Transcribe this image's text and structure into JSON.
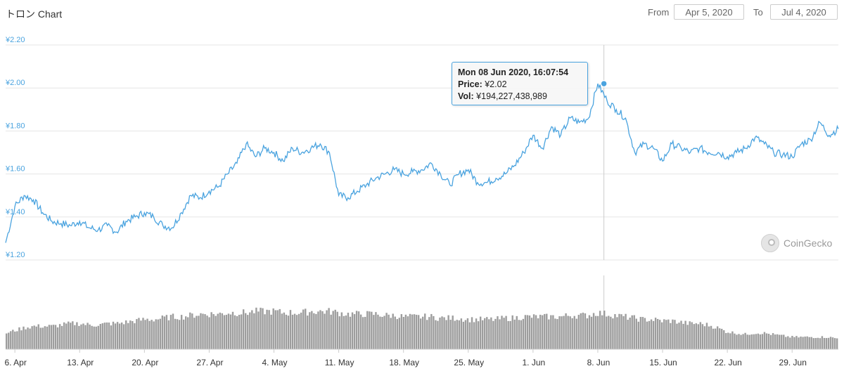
{
  "header": {
    "title": "トロン Chart",
    "from_label": "From",
    "from_value": "Apr 5, 2020",
    "to_label": "To",
    "to_value": "Jul 4, 2020"
  },
  "tooltip": {
    "date": "Mon 08 Jun 2020, 16:07:54",
    "price_label": "Price:",
    "price_value": "¥2.02",
    "vol_label": "Vol:",
    "vol_value": "¥194,227,438,989"
  },
  "watermark": {
    "text": "CoinGecko",
    "icon": "coingecko-gecko-icon"
  },
  "colors": {
    "line": "#4aa3df",
    "volume": "#8c8c8c",
    "grid": "#e6e6e6",
    "crosshair": "#cccccc"
  },
  "chart_data": {
    "type": "line",
    "title": "トロン Chart",
    "ylim": [
      1.2,
      2.2
    ],
    "yticks": [
      "¥1.20",
      "¥1.40",
      "¥1.60",
      "¥1.80",
      "¥2.00",
      "¥2.20"
    ],
    "ytick_values": [
      1.2,
      1.4,
      1.6,
      1.8,
      2.0,
      2.2
    ],
    "x_start": "2020-04-05",
    "x_end": "2020-07-04",
    "xticks": [
      "6. Apr",
      "13. Apr",
      "20. Apr",
      "27. Apr",
      "4. May",
      "11. May",
      "18. May",
      "25. May",
      "1. Jun",
      "8. Jun",
      "15. Jun",
      "22. Jun",
      "29. Jun"
    ],
    "xtick_dates": [
      "2020-04-06",
      "2020-04-13",
      "2020-04-20",
      "2020-04-27",
      "2020-05-04",
      "2020-05-11",
      "2020-05-18",
      "2020-05-25",
      "2020-06-01",
      "2020-06-08",
      "2020-06-15",
      "2020-06-22",
      "2020-06-29"
    ],
    "grid": true,
    "series": [
      {
        "x": [
          "2020-04-05",
          "2020-04-06",
          "2020-04-07",
          "2020-04-08",
          "2020-04-09",
          "2020-04-10",
          "2020-04-11",
          "2020-04-12",
          "2020-04-13",
          "2020-04-14",
          "2020-04-15",
          "2020-04-16",
          "2020-04-17",
          "2020-04-18",
          "2020-04-19",
          "2020-04-20",
          "2020-04-21",
          "2020-04-22",
          "2020-04-23",
          "2020-04-24",
          "2020-04-25",
          "2020-04-26",
          "2020-04-27",
          "2020-04-28",
          "2020-04-29",
          "2020-04-30",
          "2020-05-01",
          "2020-05-02",
          "2020-05-03",
          "2020-05-04",
          "2020-05-05",
          "2020-05-06",
          "2020-05-07",
          "2020-05-08",
          "2020-05-09",
          "2020-05-10",
          "2020-05-11",
          "2020-05-12",
          "2020-05-13",
          "2020-05-14",
          "2020-05-15",
          "2020-05-16",
          "2020-05-17",
          "2020-05-18",
          "2020-05-19",
          "2020-05-20",
          "2020-05-21",
          "2020-05-22",
          "2020-05-23",
          "2020-05-24",
          "2020-05-25",
          "2020-05-26",
          "2020-05-27",
          "2020-05-28",
          "2020-05-29",
          "2020-05-30",
          "2020-05-31",
          "2020-06-01",
          "2020-06-02",
          "2020-06-03",
          "2020-06-04",
          "2020-06-05",
          "2020-06-06",
          "2020-06-07",
          "2020-06-08",
          "2020-06-09",
          "2020-06-10",
          "2020-06-11",
          "2020-06-12",
          "2020-06-13",
          "2020-06-14",
          "2020-06-15",
          "2020-06-16",
          "2020-06-17",
          "2020-06-18",
          "2020-06-19",
          "2020-06-20",
          "2020-06-21",
          "2020-06-22",
          "2020-06-23",
          "2020-06-24",
          "2020-06-25",
          "2020-06-26",
          "2020-06-27",
          "2020-06-28",
          "2020-06-29",
          "2020-06-30",
          "2020-07-01",
          "2020-07-02",
          "2020-07-03",
          "2020-07-04"
        ],
        "values": [
          1.28,
          1.45,
          1.5,
          1.48,
          1.42,
          1.38,
          1.37,
          1.36,
          1.38,
          1.35,
          1.34,
          1.36,
          1.33,
          1.38,
          1.4,
          1.42,
          1.4,
          1.36,
          1.35,
          1.42,
          1.5,
          1.49,
          1.52,
          1.54,
          1.6,
          1.65,
          1.74,
          1.68,
          1.72,
          1.7,
          1.66,
          1.72,
          1.7,
          1.72,
          1.74,
          1.7,
          1.5,
          1.49,
          1.52,
          1.55,
          1.58,
          1.6,
          1.62,
          1.6,
          1.61,
          1.62,
          1.65,
          1.6,
          1.55,
          1.6,
          1.62,
          1.56,
          1.56,
          1.58,
          1.6,
          1.64,
          1.7,
          1.78,
          1.72,
          1.82,
          1.78,
          1.86,
          1.84,
          1.86,
          2.02,
          1.94,
          1.9,
          1.86,
          1.7,
          1.74,
          1.72,
          1.66,
          1.74,
          1.72,
          1.7,
          1.72,
          1.7,
          1.7,
          1.68,
          1.7,
          1.72,
          1.77,
          1.74,
          1.7,
          1.69,
          1.68,
          1.74,
          1.76,
          1.84,
          1.78,
          1.81
        ]
      }
    ],
    "volume_relative": [
      0.12,
      0.14,
      0.16,
      0.17,
      0.17,
      0.17,
      0.18,
      0.19,
      0.19,
      0.18,
      0.18,
      0.19,
      0.19,
      0.2,
      0.21,
      0.22,
      0.22,
      0.23,
      0.24,
      0.24,
      0.25,
      0.26,
      0.26,
      0.26,
      0.27,
      0.27,
      0.27,
      0.28,
      0.28,
      0.28,
      0.27,
      0.27,
      0.27,
      0.28,
      0.28,
      0.28,
      0.27,
      0.26,
      0.26,
      0.26,
      0.26,
      0.25,
      0.25,
      0.24,
      0.24,
      0.24,
      0.24,
      0.23,
      0.23,
      0.23,
      0.22,
      0.22,
      0.22,
      0.22,
      0.23,
      0.23,
      0.24,
      0.24,
      0.24,
      0.24,
      0.24,
      0.25,
      0.25,
      0.25,
      0.27,
      0.26,
      0.25,
      0.24,
      0.23,
      0.22,
      0.22,
      0.21,
      0.21,
      0.2,
      0.19,
      0.19,
      0.18,
      0.16,
      0.13,
      0.12,
      0.11,
      0.12,
      0.12,
      0.11,
      0.1,
      0.09,
      0.09,
      0.09,
      0.09,
      0.09,
      0.08
    ],
    "highlight": {
      "x": "2020-06-08",
      "y": 2.02
    }
  }
}
